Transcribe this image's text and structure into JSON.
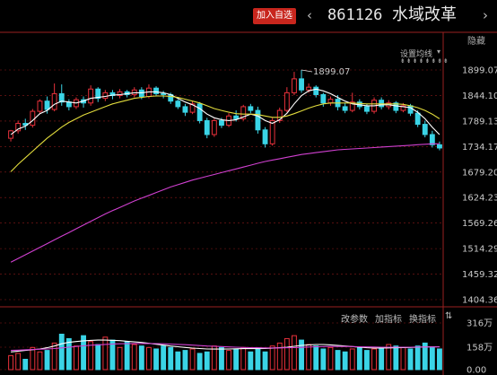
{
  "header": {
    "add_watchlist": "加入自选",
    "prev_icon": "‹",
    "next_icon": "›",
    "stock_code": "861126",
    "stock_name": "水域改革",
    "hide_label": "隐藏"
  },
  "ma_settings": {
    "label": "设置均线",
    "arrows": "⇟⇟⇟⇟⇟⇟⇟⇟",
    "dropdown_icon": "▾"
  },
  "volume_panel": {
    "tools": [
      "改参数",
      "加指标",
      "换指标",
      "⇅"
    ],
    "ticks": [
      "316万",
      "158万",
      "0.00"
    ]
  },
  "colors": {
    "up": "#e8313b",
    "down": "#3ad4e6",
    "ma_white": "#ffffff",
    "ma_yellow": "#e2dc3c",
    "ma_magenta": "#d040d0",
    "grid": "#8b1a1a",
    "axis": "#9a2020"
  },
  "chart_data": {
    "type": "candlestick",
    "price_ticks": [
      "1899.07",
      "1844.10",
      "1789.13",
      "1734.17",
      "1679.20",
      "1624.23",
      "1569.26",
      "1514.29",
      "1459.32",
      "1404.36"
    ],
    "ylim": [
      1404.36,
      1899.07
    ],
    "max_label": "1899.07",
    "candles": [
      [
        1752,
        1768,
        1745,
        1770
      ],
      [
        1768,
        1784,
        1762,
        1790
      ],
      [
        1784,
        1780,
        1770,
        1794
      ],
      [
        1780,
        1810,
        1775,
        1815
      ],
      [
        1810,
        1832,
        1804,
        1836
      ],
      [
        1832,
        1814,
        1805,
        1842
      ],
      [
        1814,
        1848,
        1810,
        1870
      ],
      [
        1848,
        1830,
        1822,
        1868
      ],
      [
        1830,
        1820,
        1812,
        1836
      ],
      [
        1820,
        1835,
        1815,
        1840
      ],
      [
        1835,
        1828,
        1818,
        1842
      ],
      [
        1828,
        1858,
        1822,
        1866
      ],
      [
        1858,
        1838,
        1830,
        1862
      ],
      [
        1838,
        1850,
        1832,
        1856
      ],
      [
        1850,
        1844,
        1836,
        1856
      ],
      [
        1844,
        1852,
        1838,
        1858
      ],
      [
        1852,
        1846,
        1840,
        1856
      ],
      [
        1846,
        1856,
        1840,
        1862
      ],
      [
        1856,
        1842,
        1836,
        1862
      ],
      [
        1842,
        1860,
        1838,
        1868
      ],
      [
        1860,
        1848,
        1842,
        1864
      ],
      [
        1848,
        1846,
        1838,
        1854
      ],
      [
        1846,
        1832,
        1826,
        1850
      ],
      [
        1832,
        1820,
        1815,
        1836
      ],
      [
        1820,
        1808,
        1800,
        1826
      ],
      [
        1808,
        1826,
        1804,
        1832
      ],
      [
        1826,
        1790,
        1784,
        1830
      ],
      [
        1790,
        1760,
        1752,
        1796
      ],
      [
        1760,
        1790,
        1755,
        1794
      ],
      [
        1790,
        1780,
        1774,
        1796
      ],
      [
        1780,
        1800,
        1776,
        1806
      ],
      [
        1800,
        1794,
        1788,
        1812
      ],
      [
        1794,
        1820,
        1790,
        1824
      ],
      [
        1820,
        1812,
        1806,
        1826
      ],
      [
        1812,
        1770,
        1762,
        1820
      ],
      [
        1770,
        1740,
        1732,
        1776
      ],
      [
        1740,
        1790,
        1736,
        1796
      ],
      [
        1790,
        1812,
        1785,
        1818
      ],
      [
        1812,
        1850,
        1808,
        1862
      ],
      [
        1850,
        1880,
        1845,
        1895
      ],
      [
        1880,
        1856,
        1850,
        1899.07
      ],
      [
        1856,
        1862,
        1850,
        1870
      ],
      [
        1862,
        1846,
        1840,
        1866
      ],
      [
        1846,
        1828,
        1820,
        1850
      ],
      [
        1828,
        1836,
        1822,
        1842
      ],
      [
        1836,
        1820,
        1812,
        1845
      ],
      [
        1820,
        1812,
        1806,
        1828
      ],
      [
        1812,
        1830,
        1808,
        1850
      ],
      [
        1830,
        1820,
        1814,
        1836
      ],
      [
        1820,
        1810,
        1804,
        1826
      ],
      [
        1810,
        1834,
        1805,
        1840
      ],
      [
        1834,
        1820,
        1814,
        1840
      ],
      [
        1820,
        1828,
        1814,
        1834
      ],
      [
        1828,
        1812,
        1806,
        1832
      ],
      [
        1812,
        1822,
        1808,
        1828
      ],
      [
        1822,
        1806,
        1800,
        1826
      ],
      [
        1806,
        1782,
        1776,
        1812
      ],
      [
        1782,
        1760,
        1754,
        1790
      ],
      [
        1760,
        1738,
        1732,
        1768
      ],
      [
        1738,
        1731,
        1726,
        1745
      ]
    ],
    "ma_fast": [
      1760,
      1772,
      1778,
      1790,
      1805,
      1812,
      1825,
      1832,
      1830,
      1828,
      1832,
      1838,
      1840,
      1842,
      1845,
      1846,
      1848,
      1850,
      1850,
      1852,
      1852,
      1850,
      1846,
      1838,
      1830,
      1824,
      1816,
      1804,
      1796,
      1792,
      1790,
      1792,
      1798,
      1804,
      1800,
      1790,
      1784,
      1792,
      1806,
      1826,
      1844,
      1854,
      1858,
      1854,
      1848,
      1840,
      1832,
      1826,
      1824,
      1822,
      1822,
      1824,
      1824,
      1822,
      1820,
      1818,
      1808,
      1794,
      1776,
      1760
    ],
    "ma_mid": [
      1680,
      1696,
      1710,
      1724,
      1738,
      1752,
      1764,
      1776,
      1786,
      1794,
      1802,
      1808,
      1814,
      1820,
      1826,
      1830,
      1834,
      1838,
      1840,
      1842,
      1843,
      1843,
      1842,
      1840,
      1836,
      1832,
      1828,
      1822,
      1816,
      1812,
      1808,
      1805,
      1804,
      1804,
      1803,
      1800,
      1797,
      1797,
      1800,
      1805,
      1811,
      1817,
      1822,
      1826,
      1828,
      1828,
      1828,
      1828,
      1827,
      1826,
      1826,
      1826,
      1826,
      1826,
      1825,
      1822,
      1818,
      1812,
      1804,
      1794
    ],
    "ma_slow": [
      1485,
      1493,
      1501,
      1509,
      1517,
      1525,
      1533,
      1541,
      1549,
      1557,
      1565,
      1573,
      1581,
      1589,
      1596,
      1603,
      1610,
      1617,
      1623,
      1629,
      1635,
      1641,
      1647,
      1652,
      1657,
      1662,
      1666,
      1670,
      1674,
      1678,
      1682,
      1686,
      1690,
      1694,
      1698,
      1702,
      1705,
      1708,
      1711,
      1714,
      1717,
      1719,
      1721,
      1723,
      1725,
      1727,
      1728,
      1729,
      1730,
      1731,
      1732,
      1733,
      1734,
      1735,
      1736,
      1737,
      1738,
      1739,
      1740,
      1740
    ],
    "volumes": [
      95,
      110,
      70,
      150,
      120,
      130,
      180,
      240,
      210,
      160,
      230,
      190,
      170,
      220,
      200,
      150,
      190,
      170,
      160,
      150,
      140,
      160,
      150,
      120,
      130,
      140,
      110,
      120,
      160,
      150,
      130,
      140,
      150,
      120,
      140,
      120,
      160,
      180,
      210,
      230,
      200,
      170,
      160,
      140,
      150,
      130,
      120,
      140,
      150,
      130,
      140,
      150,
      170,
      160,
      150,
      140,
      160,
      180,
      150,
      140
    ],
    "vol_ma": [
      120,
      125,
      130,
      135,
      140,
      148,
      160,
      175,
      185,
      190,
      195,
      198,
      200,
      200,
      198,
      196,
      192,
      188,
      184,
      178,
      172,
      166,
      160,
      155,
      150,
      146,
      143,
      140,
      139,
      139,
      140,
      141,
      142,
      142,
      142,
      143,
      145,
      148,
      152,
      158,
      164,
      168,
      170,
      170,
      168,
      164,
      160,
      156,
      152,
      148,
      146,
      146,
      147,
      148,
      149,
      150,
      152,
      154,
      155,
      155
    ],
    "vol_ma2": [
      130,
      132,
      134,
      136,
      138,
      140,
      143,
      147,
      152,
      157,
      161,
      165,
      168,
      171,
      173,
      175,
      176,
      177,
      177,
      177,
      176,
      175,
      173,
      171,
      169,
      166,
      163,
      160,
      158,
      156,
      154,
      152,
      150,
      149,
      148,
      147,
      147,
      147,
      148,
      149,
      151,
      153,
      155,
      156,
      157,
      157,
      157,
      156,
      155,
      154,
      153,
      152,
      152,
      152,
      152,
      152,
      153,
      153,
      154,
      154
    ],
    "vol_ticks_max": 316
  }
}
